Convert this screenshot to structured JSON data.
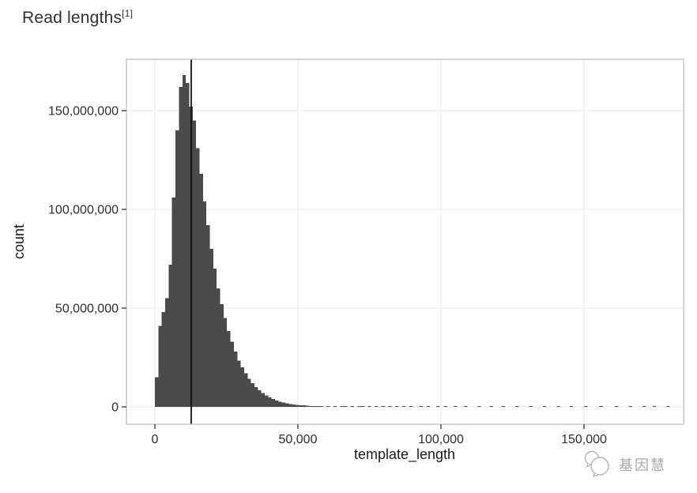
{
  "title": {
    "text": "Read lengths",
    "superscript": "[1]"
  },
  "watermark": {
    "text": "基因慧",
    "logo": "double-bubble-logo",
    "color": "#a9a9a9"
  },
  "chart_data": {
    "type": "bar",
    "subtype": "histogram",
    "title": "Read lengths",
    "xlabel": "template_length",
    "ylabel": "count",
    "legend": "none",
    "grid": "major, very light gray on white panel",
    "bar_color": "#4a4a4a",
    "marker_line": {
      "x": 12700,
      "color": "#111111"
    },
    "x_ticks": [
      0,
      50000,
      100000,
      150000
    ],
    "x_tick_labels": [
      "0",
      "50,000",
      "100,000",
      "150,000"
    ],
    "y_ticks": [
      0,
      50000000,
      100000000,
      150000000
    ],
    "y_tick_labels": [
      "0",
      "50,000,000",
      "100,000,000",
      "150,000,000"
    ],
    "xlim": [
      -10000,
      185000
    ],
    "ylim": [
      -9000000,
      176000000
    ],
    "bin_width": 1200,
    "bars": [
      [
        0,
        15000000
      ],
      [
        1200,
        41000000
      ],
      [
        2400,
        48000000
      ],
      [
        3600,
        55000000
      ],
      [
        4800,
        72000000
      ],
      [
        6000,
        106000000
      ],
      [
        7200,
        140000000
      ],
      [
        8400,
        162000000
      ],
      [
        9600,
        168000000
      ],
      [
        10800,
        164000000
      ],
      [
        12000,
        152000000
      ],
      [
        13200,
        145000000
      ],
      [
        14400,
        131000000
      ],
      [
        15600,
        118000000
      ],
      [
        16800,
        104000000
      ],
      [
        18000,
        92000000
      ],
      [
        19200,
        80000000
      ],
      [
        20400,
        70000000
      ],
      [
        21600,
        60000000
      ],
      [
        22800,
        52000000
      ],
      [
        24000,
        45000000
      ],
      [
        25200,
        38500000
      ],
      [
        26400,
        33000000
      ],
      [
        27600,
        28000000
      ],
      [
        28800,
        23500000
      ],
      [
        30000,
        20000000
      ],
      [
        31200,
        17000000
      ],
      [
        32400,
        14200000
      ],
      [
        33600,
        12000000
      ],
      [
        34800,
        10000000
      ],
      [
        36000,
        8400000
      ],
      [
        37200,
        7000000
      ],
      [
        38400,
        5800000
      ],
      [
        39600,
        4800000
      ],
      [
        40800,
        4000000
      ],
      [
        42000,
        3300000
      ],
      [
        43200,
        2700000
      ],
      [
        44400,
        2200000
      ],
      [
        45600,
        1800000
      ],
      [
        46800,
        1500000
      ],
      [
        48000,
        1250000
      ],
      [
        49200,
        1050000
      ],
      [
        50400,
        870000
      ],
      [
        51600,
        720000
      ],
      [
        52800,
        600000
      ],
      [
        54000,
        500000
      ],
      [
        55200,
        420000
      ],
      [
        56400,
        350000
      ],
      [
        57600,
        300000
      ],
      [
        60000,
        250000
      ],
      [
        62400,
        220000
      ],
      [
        64800,
        200000
      ],
      [
        66000,
        190000
      ],
      [
        68400,
        180000
      ],
      [
        70800,
        170000
      ],
      [
        72000,
        160000
      ],
      [
        74400,
        150000
      ],
      [
        76800,
        140000
      ],
      [
        79200,
        135000
      ],
      [
        81600,
        130000
      ],
      [
        84000,
        125000
      ],
      [
        86400,
        120000
      ],
      [
        89000,
        115000
      ],
      [
        92400,
        110000
      ],
      [
        95000,
        105000
      ],
      [
        98400,
        100000
      ],
      [
        101000,
        95000
      ],
      [
        104400,
        90000
      ],
      [
        108000,
        88000
      ],
      [
        112800,
        85000
      ],
      [
        117000,
        82000
      ],
      [
        121200,
        80000
      ],
      [
        126000,
        78000
      ],
      [
        130800,
        75000
      ],
      [
        135600,
        72000
      ],
      [
        140400,
        70000
      ],
      [
        145000,
        68000
      ],
      [
        150000,
        65000
      ],
      [
        155400,
        62000
      ],
      [
        160800,
        60000
      ],
      [
        165600,
        58000
      ],
      [
        170400,
        55000
      ],
      [
        174000,
        52000
      ],
      [
        178800,
        50000
      ]
    ]
  }
}
